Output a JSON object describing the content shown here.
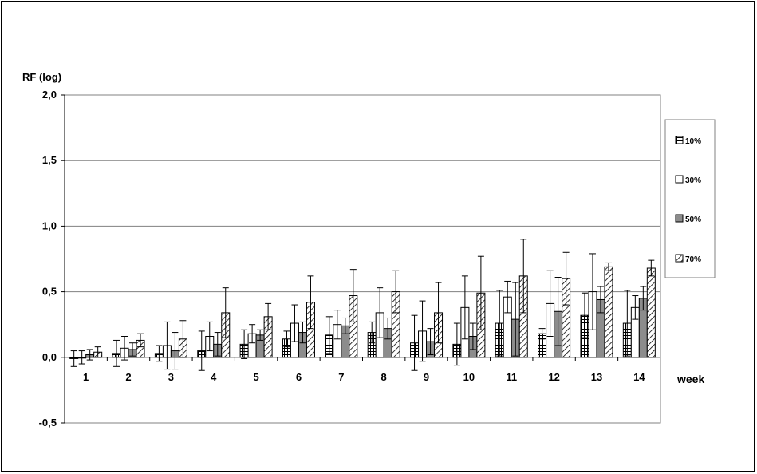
{
  "chart_data": {
    "type": "bar",
    "title": "",
    "ylabel": "RF (log)",
    "xlabel": "week",
    "ylim": [
      -0.5,
      2.0
    ],
    "yticks": [
      "-0,5",
      "0,0",
      "0,5",
      "1,0",
      "1,5",
      "2,0"
    ],
    "ytick_values": [
      -0.5,
      0.0,
      0.5,
      1.0,
      1.5,
      2.0
    ],
    "grid": true,
    "legend_position": "right",
    "categories": [
      "1",
      "2",
      "3",
      "4",
      "5",
      "6",
      "7",
      "8",
      "9",
      "10",
      "11",
      "12",
      "13",
      "14"
    ],
    "series": [
      {
        "name": "10%",
        "pattern": "grid",
        "values": [
          -0.01,
          0.03,
          0.03,
          0.05,
          0.1,
          0.14,
          0.17,
          0.19,
          0.11,
          0.1,
          0.26,
          0.18,
          0.32,
          0.26
        ],
        "err_upper": [
          0.05,
          0.13,
          0.09,
          0.2,
          0.21,
          0.2,
          0.31,
          0.27,
          0.32,
          0.26,
          0.51,
          0.22,
          0.49,
          0.51
        ]
      },
      {
        "name": "30%",
        "pattern": "white",
        "values": [
          0.0,
          0.07,
          0.09,
          0.16,
          0.18,
          0.26,
          0.25,
          0.34,
          0.2,
          0.38,
          0.46,
          0.41,
          0.5,
          0.38
        ],
        "err_upper": [
          0.05,
          0.16,
          0.27,
          0.27,
          0.25,
          0.4,
          0.36,
          0.53,
          0.43,
          0.62,
          0.58,
          0.66,
          0.79,
          0.47
        ]
      },
      {
        "name": "50%",
        "pattern": "gray",
        "values": [
          0.02,
          0.06,
          0.05,
          0.1,
          0.17,
          0.19,
          0.24,
          0.22,
          0.12,
          0.16,
          0.29,
          0.35,
          0.44,
          0.45
        ],
        "err_upper": [
          0.06,
          0.11,
          0.19,
          0.19,
          0.21,
          0.27,
          0.3,
          0.3,
          0.22,
          0.26,
          0.57,
          0.61,
          0.54,
          0.54
        ]
      },
      {
        "name": "70%",
        "pattern": "hatch",
        "values": [
          0.04,
          0.13,
          0.14,
          0.34,
          0.31,
          0.42,
          0.47,
          0.5,
          0.34,
          0.49,
          0.62,
          0.6,
          0.69,
          0.68
        ],
        "err_upper": [
          0.08,
          0.18,
          0.28,
          0.53,
          0.41,
          0.62,
          0.67,
          0.66,
          0.57,
          0.77,
          0.9,
          0.8,
          0.72,
          0.74
        ]
      }
    ]
  }
}
